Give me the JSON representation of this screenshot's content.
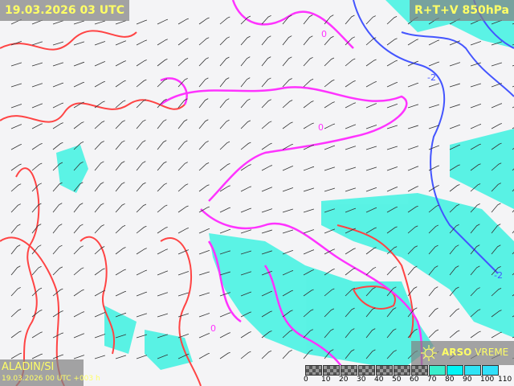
{
  "header": {
    "valid_time": "19.03.2026 03 UTC",
    "product": "R+T+V 850hPa"
  },
  "footer": {
    "model": "ALADIN/SI",
    "run_info": "19.03.2026 00 UTC +003 h",
    "brand_bold": "ARSO",
    "brand_light": "VREME"
  },
  "legend": {
    "ticks": [
      "0",
      "10",
      "20",
      "30",
      "40",
      "50",
      "60",
      "70",
      "80",
      "90",
      "100",
      "110"
    ],
    "colors": [
      "#3aeecc",
      "#00f5f5",
      "#30e4f6",
      "#30e0fa"
    ]
  },
  "contour_labels": [
    "0",
    "0",
    "-2",
    "-2",
    "0"
  ],
  "colors": {
    "isotherm_pos": "#ff4444",
    "isotherm_zero": "#ff33ff",
    "isotherm_neg": "#4444ff",
    "humidity": "#33f0e0"
  }
}
